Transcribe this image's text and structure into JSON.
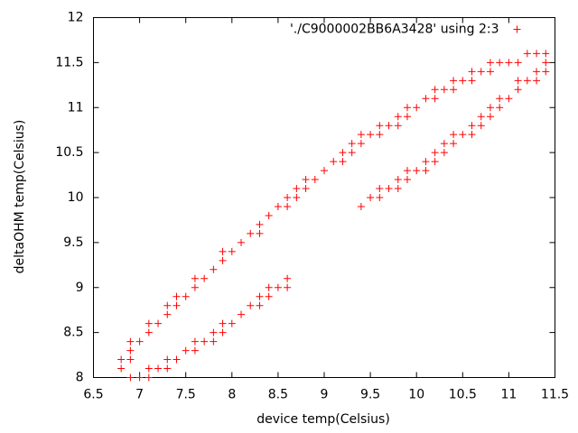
{
  "chart_data": {
    "type": "scatter",
    "xlabel": "device temp(Celsius)",
    "ylabel": "deltaOHM temp(Celsius)",
    "xlim": [
      6.5,
      11.5
    ],
    "xticks": [
      6.5,
      7,
      7.5,
      8,
      8.5,
      9,
      9.5,
      10,
      10.5,
      11,
      11.5
    ],
    "ylim": [
      8,
      12
    ],
    "yticks": [
      8,
      8.5,
      9,
      9.5,
      10,
      10.5,
      11,
      11.5,
      12
    ],
    "legend": "top-right",
    "series": [
      {
        "name": "'./C9000002BB6A3428' using 2:3",
        "color": "#ff0000",
        "x": [
          6.8,
          6.8,
          6.9,
          6.9,
          6.9,
          6.9,
          7,
          7,
          7.1,
          7.1,
          7.1,
          7.1,
          7.2,
          7.2,
          7.3,
          7.3,
          7.3,
          7.3,
          7.4,
          7.4,
          7.4,
          7.5,
          7.5,
          7.6,
          7.6,
          7.6,
          7.6,
          7.7,
          7.7,
          7.8,
          7.8,
          7.8,
          7.9,
          7.9,
          7.9,
          7.9,
          8,
          8,
          8.1,
          8.1,
          8.2,
          8.2,
          8.3,
          8.3,
          8.3,
          8.3,
          8.4,
          8.4,
          8.4,
          8.5,
          8.5,
          8.6,
          8.6,
          8.6,
          8.6,
          8.7,
          8.7,
          8.8,
          8.8,
          8.9,
          9,
          9.1,
          9.2,
          9.2,
          9.3,
          9.3,
          9.4,
          9.4,
          9.4,
          9.5,
          9.5,
          9.6,
          9.6,
          9.6,
          9.6,
          9.7,
          9.7,
          9.8,
          9.8,
          9.8,
          9.8,
          9.9,
          9.9,
          9.9,
          9.9,
          10,
          10,
          10.1,
          10.1,
          10.1,
          10.2,
          10.2,
          10.2,
          10.2,
          10.3,
          10.3,
          10.3,
          10.4,
          10.4,
          10.4,
          10.4,
          10.5,
          10.5,
          10.6,
          10.6,
          10.6,
          10.6,
          10.7,
          10.7,
          10.7,
          10.8,
          10.8,
          10.8,
          10.8,
          10.9,
          10.9,
          10.9,
          11,
          11,
          11.1,
          11.1,
          11.1,
          11.2,
          11.2,
          11.3,
          11.3,
          11.3,
          11.4,
          11.4,
          11.4
        ],
        "values": [
          8.2,
          8.1,
          8.4,
          8.3,
          8.2,
          8,
          8.4,
          8,
          8.6,
          8.5,
          8.1,
          8,
          8.6,
          8.1,
          8.8,
          8.7,
          8.2,
          8.1,
          8.9,
          8.8,
          8.2,
          8.9,
          8.3,
          9.1,
          9,
          8.4,
          8.3,
          9.1,
          8.4,
          9.2,
          8.5,
          8.4,
          9.4,
          9.3,
          8.6,
          8.5,
          9.4,
          8.6,
          9.5,
          8.7,
          9.6,
          8.8,
          9.7,
          9.6,
          8.9,
          8.8,
          9.8,
          9,
          8.9,
          9.9,
          9,
          10,
          9.9,
          9.1,
          9,
          10.1,
          10,
          10.2,
          10.1,
          10.2,
          10.3,
          10.4,
          10.5,
          10.4,
          10.6,
          10.5,
          10.7,
          10.6,
          9.9,
          10.7,
          10,
          10.8,
          10.7,
          10.1,
          10,
          10.8,
          10.1,
          10.9,
          10.8,
          10.2,
          10.1,
          11,
          10.9,
          10.3,
          10.2,
          11,
          10.3,
          11.1,
          10.4,
          10.3,
          11.2,
          11.1,
          10.5,
          10.4,
          11.2,
          10.6,
          10.5,
          11.3,
          11.2,
          10.7,
          10.6,
          11.3,
          10.7,
          11.4,
          11.3,
          10.8,
          10.7,
          11.4,
          10.9,
          10.8,
          11.5,
          11.4,
          11,
          10.9,
          11.5,
          11.1,
          11,
          11.5,
          11.1,
          11.5,
          11.3,
          11.2,
          11.6,
          11.3,
          11.6,
          11.4,
          11.3,
          11.6,
          11.5,
          11.4
        ]
      }
    ]
  }
}
